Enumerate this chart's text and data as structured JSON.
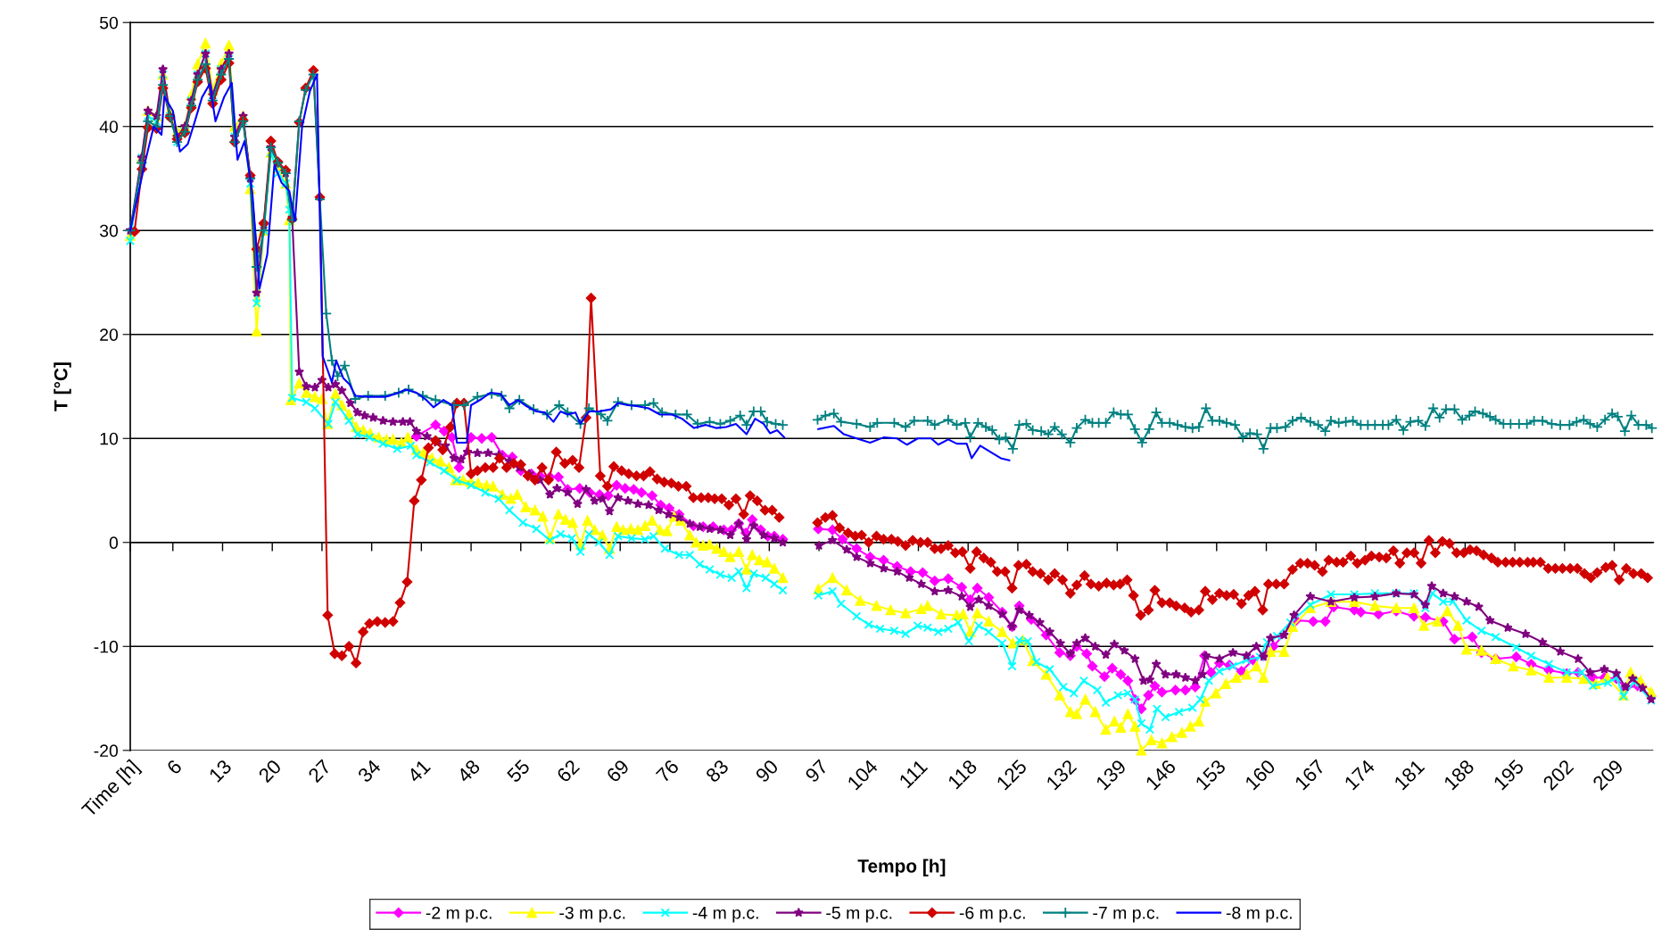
{
  "chart_data": {
    "type": "line",
    "xlabel": "Tempo [h]",
    "ylabel": "T [°C]",
    "xlim": [
      0,
      214.5
    ],
    "ylim": [
      -20,
      50
    ],
    "yticks": [
      -20,
      -10,
      0,
      10,
      20,
      30,
      40,
      50
    ],
    "xticks": [
      {
        "value": 0,
        "label": "Time [h]"
      },
      6,
      13,
      20,
      27,
      34,
      41,
      48,
      55,
      62,
      69,
      76,
      83,
      90,
      97,
      104,
      111,
      118,
      125,
      132,
      139,
      146,
      153,
      160,
      167,
      174,
      181,
      188,
      195,
      202,
      209
    ],
    "grid": "y",
    "legend": "bottom",
    "series": [
      {
        "name": "-2 m p.c.",
        "color": "#ff00ff",
        "marker": "diamond",
        "x": [
          40.3,
          43.0,
          44.2,
          45.3,
          46.3,
          48.0,
          49.5,
          50.9,
          52.4,
          53.8,
          55.0,
          56.5,
          57.7,
          59.1,
          60.3,
          61.6,
          63.3,
          64.7,
          66.1,
          67.3,
          68.5,
          69.7,
          70.9,
          72.0,
          73.5,
          74.7,
          75.9,
          77.3,
          79.3,
          80.7,
          82.1,
          83.6,
          84.7,
          85.7,
          86.7,
          87.6,
          88.8,
          89.8,
          90.7,
          91.9,
          94,
          96.9,
          98.9,
          100.3,
          102.3,
          104.2,
          106.1,
          108.0,
          109.9,
          111.6,
          113.3,
          115.2,
          117.1,
          118.3,
          119.3,
          120.9,
          122.8,
          124.2,
          125.2,
          126.9,
          129.0,
          130.9,
          132.4,
          133.3,
          134.7,
          135.5,
          137.2,
          138.3,
          139.5,
          140.5,
          141.5,
          142.4,
          143.4,
          144.3,
          145.3,
          147.2,
          148.6,
          150.0,
          151.3,
          152.2,
          153.4,
          154.8,
          156.5,
          158.1,
          159.6,
          161.0,
          163.4,
          164.2,
          166.6,
          168.3,
          169.5,
          172.4,
          173.3,
          175.8,
          178.3,
          180.8,
          182.4,
          184.9,
          186.5,
          189.0,
          190.3,
          192.3,
          195.2,
          197.3,
          199.8,
          202.3,
          203.9,
          206.0,
          207.6,
          209.3,
          210.6,
          212.3,
          214.2
        ],
        "values": [
          10.2,
          11.3,
          10.7,
          10.1,
          7.2,
          10.1,
          10.0,
          10.1,
          8.4,
          8.2,
          6.9,
          6.6,
          6.4,
          6.3,
          6.3,
          5.1,
          5.2,
          4.8,
          4.6,
          4.5,
          5.5,
          5.2,
          5.1,
          4.8,
          4.5,
          3.6,
          3.3,
          2.7,
          1.6,
          1.5,
          1.5,
          1.2,
          1.2,
          1.8,
          0.9,
          2.2,
          1.2,
          0.6,
          0.6,
          0.3,
          null,
          1.3,
          1.2,
          0.3,
          -0.6,
          -1.4,
          -1.7,
          -2.3,
          -2.8,
          -2.9,
          -3.7,
          -3.5,
          -4.3,
          -5.5,
          -4.4,
          -5.3,
          -6.7,
          -8.1,
          -6.1,
          -7.4,
          -8.9,
          -10.6,
          -10.9,
          -10.0,
          -10.7,
          -11.9,
          -12.9,
          -12.1,
          -12.7,
          -13.3,
          -15.1,
          -16.0,
          -14.7,
          -13.8,
          -14.4,
          -14.2,
          -14.2,
          -13.9,
          -10.9,
          -12.5,
          -11.6,
          -11.8,
          -12.4,
          -11.3,
          -10.9,
          -10.0,
          -8.1,
          -7.5,
          -7.6,
          -7.6,
          -6.2,
          -6.5,
          -6.7,
          -6.9,
          -6.6,
          -7.1,
          -7.2,
          -7.6,
          -9.3,
          -9.1,
          -10.6,
          -11.2,
          -11.0,
          -11.7,
          -12.3,
          -12.6,
          -12.5,
          -13.0,
          -13.0,
          -13.1,
          -14.0,
          -13.8,
          -14.8
        ]
      },
      {
        "name": "-3 m p.c.",
        "color": "#ffff00",
        "marker": "triangle",
        "x": [
          0,
          1.6,
          2.5,
          3.7,
          4.6,
          5.6,
          6.6,
          7.7,
          8.6,
          9.5,
          10.6,
          11.6,
          12.8,
          13.9,
          14.7,
          15.9,
          16.9,
          17.8,
          18.8,
          19.8,
          20.8,
          21.9,
          22.4,
          22.6,
          23.8,
          24.8,
          26.0,
          27.0,
          27.8,
          28.9,
          29.8,
          30.8,
          31.8,
          32.8,
          33.8,
          35.0,
          36.1,
          37.0,
          38.2,
          39.1,
          40.3,
          41.3,
          42.5,
          43.7,
          44.9,
          45.8,
          46.9,
          48.0,
          49.0,
          50.2,
          51.1,
          52.4,
          53.6,
          54.5,
          55.7,
          57.0,
          58.1,
          59.1,
          60.3,
          61.3,
          62.3,
          63.4,
          64.4,
          65.4,
          66.5,
          67.5,
          68.5,
          69.4,
          70.5,
          71.5,
          72.5,
          73.5,
          74.6,
          75.6,
          76.6,
          77.5,
          78.8,
          79.7,
          80.7,
          81.6,
          82.6,
          83.6,
          84.5,
          85.7,
          86.8,
          87.6,
          88.6,
          89.7,
          90.7,
          91.9,
          94,
          96.9,
          98.9,
          100.9,
          102.8,
          105.1,
          107.1,
          109.2,
          111.4,
          112.3,
          114.2,
          116.4,
          117.3,
          118.3,
          119.3,
          120.9,
          122.8,
          124.3,
          125.7,
          127.1,
          129.0,
          130.9,
          132.4,
          133.3,
          134.5,
          135.9,
          137.4,
          138.6,
          139.5,
          140.5,
          141.5,
          142.4,
          143.8,
          145.3,
          146.7,
          148.1,
          149.3,
          150.5,
          151.4,
          152.9,
          154.3,
          155.8,
          157.2,
          158.6,
          159.6,
          160.6,
          162.5,
          163.7,
          166.2,
          169.1,
          172.4,
          175.3,
          178.3,
          180.8,
          182.2,
          184.1,
          185.5,
          187.0,
          188.2,
          190.3,
          192.3,
          194.8,
          197.3,
          199.8,
          202.3,
          204.7,
          206.4,
          208.0,
          210.3,
          211.3,
          212.7,
          214.2
        ],
        "values": [
          29.5,
          37,
          41.5,
          41,
          45,
          41.5,
          39.5,
          40,
          43,
          46,
          48,
          43.5,
          46,
          47.8,
          40,
          41,
          34,
          20.3,
          30,
          37.5,
          36,
          34.5,
          31,
          13.7,
          15.3,
          14.4,
          14.0,
          13.8,
          11.4,
          14.3,
          13.2,
          12.3,
          11.1,
          10.8,
          10.5,
          10.1,
          9.9,
          9.9,
          9.6,
          10.1,
          8.9,
          8.6,
          8.1,
          7.8,
          7.2,
          6.0,
          6.0,
          5.8,
          5.7,
          5.5,
          5.4,
          4.6,
          4.2,
          4.6,
          3.4,
          3.1,
          2.5,
          0.4,
          2.7,
          2.2,
          1.9,
          -0.2,
          2.1,
          1.2,
          0.7,
          -0.6,
          1.5,
          1.2,
          1.3,
          1.2,
          1.6,
          2.1,
          1.2,
          1.1,
          2.5,
          2.1,
          0.7,
          0.0,
          -0.3,
          -0.2,
          -0.6,
          -0.9,
          -1.4,
          -0.9,
          -2.6,
          -1.2,
          -1.7,
          -1.9,
          -2.5,
          -3.4,
          null,
          -4.5,
          -3.4,
          -4.6,
          -5.6,
          -6.1,
          -6.5,
          -6.8,
          -6.4,
          -6.1,
          -6.9,
          -7.0,
          -6.9,
          -8.6,
          -6.8,
          -7.6,
          -8.6,
          -9.7,
          -9.4,
          -11.4,
          -12.7,
          -14.7,
          -16.3,
          -16.5,
          -15.1,
          -16.3,
          -18.0,
          -17.2,
          -17.8,
          -16.5,
          -17.7,
          -20.0,
          -19.0,
          -19.3,
          -18.7,
          -18.3,
          -17.7,
          -17.2,
          -15.3,
          -14.5,
          -13.6,
          -13.0,
          -12.7,
          -11.9,
          -13.0,
          -10.5,
          -10.5,
          -8.1,
          -6.3,
          -5.7,
          -5.7,
          -6.1,
          -6.3,
          -6.3,
          -8.0,
          -7.6,
          -6.6,
          -8.0,
          -10.3,
          -10.4,
          -11.2,
          -11.9,
          -12.3,
          -13.0,
          -13.0,
          -13.1,
          -13.6,
          -13.0,
          -14.7,
          -12.5,
          -13.3,
          -14.4
        ]
      },
      {
        "name": "-4 m p.c.",
        "color": "#00ffff",
        "marker": "cross",
        "x": [
          0,
          1.6,
          2.5,
          3.7,
          4.6,
          5.6,
          6.6,
          7.7,
          8.6,
          9.5,
          10.6,
          11.6,
          12.8,
          13.9,
          14.7,
          15.9,
          16.9,
          17.8,
          18.8,
          19.8,
          20.8,
          21.9,
          22.4,
          22.8,
          24.8,
          26.0,
          27.9,
          28.9,
          30.8,
          32.0,
          33.7,
          35.6,
          37.6,
          39.5,
          40.3,
          42.2,
          44.2,
          46.0,
          48.0,
          50.0,
          51.9,
          53.4,
          55.3,
          57.2,
          59.1,
          60.6,
          62.2,
          63.4,
          64.6,
          66.0,
          67.5,
          68.7,
          70.6,
          72.5,
          73.7,
          75.3,
          77.3,
          78.8,
          80.2,
          81.6,
          83.1,
          84.7,
          85.7,
          86.8,
          87.8,
          89.5,
          90.7,
          91.9,
          94,
          96.9,
          98.9,
          100.1,
          102.3,
          104.0,
          105.6,
          107.6,
          109.2,
          110.9,
          112.3,
          113.8,
          115.2,
          116.6,
          118.1,
          119.5,
          120.9,
          122.8,
          124.2,
          125.2,
          126.4,
          127.6,
          129.5,
          131.4,
          132.9,
          134.3,
          136.2,
          137.4,
          139.1,
          140.5,
          141.5,
          142.4,
          143.6,
          144.6,
          145.8,
          147.7,
          149.6,
          150.7,
          151.9,
          153.4,
          155.3,
          157.2,
          159.1,
          160.1,
          161.5,
          163.4,
          166.2,
          169.1,
          172.4,
          175.3,
          178.3,
          180.8,
          182.4,
          183.4,
          184.9,
          186.3,
          188.2,
          190.3,
          192.3,
          195.2,
          197.3,
          199.8,
          202.3,
          204.4,
          206.0,
          208.1,
          209.3,
          210.3,
          211.8,
          214.2
        ],
        "values": [
          29,
          37,
          41,
          40.5,
          45,
          41,
          38.5,
          39.5,
          42.5,
          45,
          47,
          43,
          45.5,
          46.5,
          39,
          40.5,
          34.5,
          23,
          30,
          37.5,
          35.5,
          34.5,
          32,
          13.9,
          13.5,
          12.9,
          11.4,
          13.5,
          11.7,
          10.4,
          10.1,
          9.5,
          9.0,
          9.3,
          8.4,
          7.7,
          6.9,
          6.0,
          5.5,
          4.8,
          4.2,
          3.1,
          1.9,
          1.3,
          0.2,
          0.8,
          0.4,
          -0.9,
          0.8,
          0.0,
          -1.2,
          0.6,
          0.4,
          0.3,
          0.6,
          -0.6,
          -1.2,
          -1.2,
          -2.1,
          -2.6,
          -3.1,
          -3.4,
          -2.8,
          -4.4,
          -3.0,
          -3.4,
          -4.0,
          -4.6,
          null,
          -5.1,
          -4.7,
          -5.9,
          -7.1,
          -7.9,
          -8.3,
          -8.5,
          -8.8,
          -8.0,
          -8.2,
          -8.6,
          -8.3,
          -7.7,
          -9.5,
          -8.0,
          -8.6,
          -9.7,
          -11.9,
          -9.4,
          -9.5,
          -11.5,
          -12.2,
          -13.9,
          -14.5,
          -13.3,
          -14.2,
          -15.4,
          -14.7,
          -14.5,
          -15.1,
          -17.4,
          -18.0,
          -16.0,
          -16.8,
          -16.3,
          -15.9,
          -15.1,
          -13.3,
          -12.4,
          -11.9,
          -11.3,
          -11.0,
          -9.6,
          -9.0,
          -7.7,
          -6.0,
          -5.0,
          -5.0,
          -4.9,
          -4.9,
          -4.9,
          -6.3,
          -4.9,
          -5.7,
          -5.7,
          -7.5,
          -8.5,
          -9.1,
          -10.1,
          -10.9,
          -11.7,
          -12.5,
          -12.5,
          -13.8,
          -13.5,
          -13.0,
          -14.8,
          -13.4,
          -15.2
        ]
      },
      {
        "name": "-5 m p.c.",
        "color": "#800080",
        "marker": "star",
        "x": [
          0,
          1.6,
          2.5,
          3.7,
          4.6,
          5.6,
          6.6,
          7.7,
          8.6,
          9.5,
          10.6,
          11.6,
          12.8,
          13.9,
          14.7,
          15.9,
          16.9,
          17.8,
          18.8,
          19.8,
          20.8,
          21.9,
          22.8,
          23.8,
          24.8,
          26.0,
          27.0,
          27.9,
          28.9,
          29.8,
          31.0,
          32.0,
          33.0,
          34.2,
          35.6,
          37.0,
          38.4,
          39.4,
          40.3,
          41.8,
          43.2,
          44.4,
          45.6,
          46.6,
          47.5,
          48.9,
          50.4,
          51.9,
          53.4,
          54.8,
          56.2,
          57.7,
          59.1,
          60.1,
          61.6,
          63.0,
          64.2,
          65.4,
          66.5,
          67.5,
          68.7,
          70.1,
          71.5,
          73.0,
          74.4,
          75.8,
          77.3,
          78.8,
          80.2,
          81.6,
          83.1,
          84.5,
          85.7,
          86.8,
          87.8,
          89.2,
          90.7,
          91.9,
          94,
          97.0,
          98.9,
          100.9,
          102.3,
          104.2,
          106.1,
          108.0,
          109.7,
          111.4,
          113.3,
          115.2,
          117.1,
          118.3,
          119.5,
          120.9,
          122.8,
          124.2,
          125.2,
          126.6,
          128.1,
          129.5,
          131.0,
          132.4,
          133.3,
          134.5,
          135.9,
          137.4,
          138.6,
          140.0,
          141.5,
          142.7,
          143.6,
          144.5,
          145.8,
          147.3,
          148.6,
          150.0,
          151.0,
          151.5,
          153.4,
          155.3,
          157.2,
          158.6,
          159.6,
          160.6,
          162.5,
          163.9,
          166.2,
          169.1,
          172.4,
          175.3,
          178.3,
          180.8,
          182.4,
          183.3,
          184.9,
          186.5,
          188.2,
          189.9,
          191.5,
          194.0,
          196.5,
          198.9,
          201.4,
          203.9,
          205.6,
          207.6,
          209.3,
          210.6,
          211.6,
          213.0,
          214.2
        ],
        "values": [
          30,
          37,
          41.5,
          41,
          45.5,
          41,
          39,
          40,
          42.5,
          45,
          47,
          43,
          45.5,
          47,
          39,
          41,
          35,
          24,
          30.5,
          38,
          36.5,
          35.5,
          31.2,
          16.4,
          15.0,
          14.9,
          15.6,
          14.9,
          15.2,
          14.6,
          13.4,
          12.5,
          12.2,
          12.0,
          11.7,
          11.6,
          11.6,
          11.6,
          10.7,
          10.2,
          9.6,
          9.3,
          8.1,
          8.0,
          8.7,
          8.6,
          8.6,
          8.4,
          7.8,
          7.2,
          6.6,
          6.0,
          4.6,
          5.2,
          4.8,
          3.7,
          5.1,
          4.0,
          4.2,
          3.0,
          4.3,
          4.0,
          3.7,
          3.6,
          3.1,
          2.7,
          2.4,
          1.8,
          1.5,
          1.3,
          1.2,
          0.7,
          1.8,
          0.3,
          1.6,
          0.7,
          0.4,
          0.0,
          null,
          -0.3,
          0.2,
          -0.7,
          -1.4,
          -2.0,
          -2.5,
          -2.8,
          -3.4,
          -4.0,
          -4.7,
          -4.6,
          -5.2,
          -6.2,
          -5.5,
          -6.1,
          -6.9,
          -8.1,
          -6.5,
          -7.0,
          -7.7,
          -8.6,
          -9.7,
          -10.7,
          -9.7,
          -9.2,
          -10.0,
          -10.8,
          -9.8,
          -10.4,
          -11.2,
          -13.3,
          -13.2,
          -11.7,
          -12.7,
          -12.7,
          -13.0,
          -13.3,
          -12.7,
          -10.9,
          -11.2,
          -10.6,
          -10.9,
          -10.0,
          -11.0,
          -9.2,
          -8.9,
          -7.0,
          -5.2,
          -5.7,
          -5.3,
          -5.2,
          -4.9,
          -5.0,
          -6.0,
          -4.2,
          -4.9,
          -5.2,
          -5.7,
          -6.2,
          -7.5,
          -8.2,
          -8.8,
          -9.6,
          -10.5,
          -11.2,
          -12.5,
          -12.2,
          -12.6,
          -13.9,
          -13.1,
          -14.0,
          -15.1
        ]
      },
      {
        "name": "-6 m p.c.",
        "color": "#d00000",
        "marker": "diamond",
        "x": [
          0.6,
          1.65,
          2.5,
          3.7,
          4.6,
          5.6,
          6.6,
          7.7,
          8.6,
          9.5,
          10.6,
          11.6,
          12.8,
          13.9,
          14.7,
          15.9,
          16.9,
          17.8,
          18.8,
          19.8,
          20.8,
          21.9,
          22.8,
          23.8,
          24.7,
          25.8,
          26.7,
          27.8,
          28.8,
          29.8,
          30.8,
          31.8,
          32.8,
          33.7,
          34.8,
          35.9,
          37.0,
          38.0,
          39.0,
          40.0,
          41.0,
          42.0,
          43.0,
          44.0,
          45.1,
          46.0,
          47.0,
          48.0,
          48.9,
          50.0,
          51.1,
          52.0,
          53.0,
          54.0,
          55.0,
          56.0,
          57.0,
          58.0,
          58.9,
          60.0,
          61.2,
          62.3,
          63.2,
          64.2,
          64.9,
          66.2,
          67.2,
          68.1,
          69.2,
          70.2,
          71.3,
          72.3,
          73.2,
          74.2,
          75.2,
          76.2,
          77.2,
          78.3,
          79.3,
          80.4,
          81.4,
          82.3,
          83.3,
          84.3,
          85.3,
          86.4,
          87.3,
          88.3,
          89.4,
          90.4,
          91.4,
          94,
          96.8,
          97.9,
          98.9,
          99.9,
          101.1,
          102.1,
          103.0,
          104.0,
          105.1,
          106.1,
          107.2,
          108.1,
          109.2,
          110.2,
          111.3,
          112.3,
          113.3,
          114.2,
          115.2,
          116.2,
          117.2,
          118.3,
          119.2,
          120.2,
          121.2,
          122.1,
          123.2,
          124.2,
          125.1,
          126.2,
          127.1,
          128.2,
          129.3,
          130.2,
          131.3,
          132.4,
          133.3,
          134.4,
          135.3,
          136.4,
          137.5,
          138.5,
          139.4,
          140.4,
          141.3,
          142.3,
          143.4,
          144.3,
          145.3,
          146.4,
          147.3,
          148.5,
          149.4,
          150.5,
          151.4,
          152.4,
          153.4,
          154.4,
          155.4,
          156.5,
          157.5,
          158.4,
          159.5,
          160.3,
          161.4,
          162.5,
          163.7,
          164.8,
          165.8,
          166.8,
          167.9,
          168.8,
          169.9,
          170.8,
          171.9,
          172.8,
          173.9,
          174.8,
          175.9,
          176.9,
          177.9,
          178.8,
          179.8,
          180.8,
          181.8,
          182.9,
          183.8,
          184.8,
          185.8,
          186.8,
          187.8,
          188.7,
          189.6,
          190.6,
          191.7,
          192.6,
          193.7,
          194.7,
          195.7,
          196.8,
          197.6,
          198.6,
          199.7,
          200.7,
          201.7,
          202.8,
          203.8,
          204.8,
          205.7,
          206.6,
          207.8,
          208.7,
          209.7,
          210.7,
          211.7,
          212.8,
          213.7
        ],
        "values": [
          29.9,
          35.9,
          39.9,
          39.8,
          43.7,
          40.9,
          38.8,
          39.4,
          41.8,
          44.3,
          45.6,
          42.2,
          44.5,
          46.1,
          38.5,
          40.6,
          35.3,
          28.2,
          30.7,
          38.6,
          36.6,
          35.8,
          31.1,
          40.4,
          43.7,
          45.4,
          33.2,
          -7.0,
          -10.7,
          -10.9,
          -10.0,
          -11.6,
          -8.6,
          -7.8,
          -7.6,
          -7.7,
          -7.6,
          -5.8,
          -3.8,
          4.0,
          6.0,
          9.1,
          9.8,
          8.9,
          11.1,
          13.4,
          13.4,
          6.6,
          6.9,
          7.2,
          7.2,
          8.1,
          7.2,
          7.6,
          7.5,
          6.4,
          6.0,
          7.2,
          6.0,
          8.7,
          7.6,
          7.9,
          7.2,
          12.0,
          23.5,
          6.4,
          5.4,
          7.3,
          6.9,
          6.6,
          6.4,
          6.4,
          6.8,
          6.1,
          5.8,
          5.7,
          5.4,
          5.4,
          4.3,
          4.3,
          4.3,
          4.2,
          4.2,
          3.6,
          4.2,
          2.7,
          4.5,
          4.0,
          3.1,
          3.1,
          2.4,
          null,
          1.9,
          2.4,
          2.6,
          1.4,
          0.9,
          0.6,
          0.7,
          0.0,
          0.6,
          0.3,
          0.3,
          0.1,
          -0.3,
          0.2,
          0.0,
          0.0,
          -0.6,
          -0.6,
          -0.3,
          -1.0,
          -0.9,
          -2.5,
          -0.9,
          -1.5,
          -1.9,
          -2.8,
          -2.8,
          -4.4,
          -2.2,
          -2.1,
          -2.8,
          -3.0,
          -3.6,
          -3.0,
          -3.6,
          -4.9,
          -4.1,
          -3.2,
          -4.0,
          -4.2,
          -3.9,
          -4.1,
          -4.0,
          -3.6,
          -5.1,
          -7.0,
          -6.5,
          -4.6,
          -5.8,
          -5.8,
          -6.1,
          -6.3,
          -6.7,
          -6.5,
          -4.7,
          -5.5,
          -4.9,
          -5.1,
          -5.0,
          -5.9,
          -5.1,
          -4.7,
          -6.5,
          -4.0,
          -4.0,
          -4.0,
          -2.6,
          -2.0,
          -2.0,
          -2.2,
          -2.8,
          -1.7,
          -1.9,
          -1.9,
          -1.3,
          -2.0,
          -1.7,
          -1.3,
          -1.4,
          -1.5,
          -0.8,
          -2.0,
          -1.0,
          -1.0,
          -2.0,
          0.2,
          -1.0,
          0.1,
          -0.1,
          -1.0,
          -1.0,
          -0.7,
          -0.8,
          -1.2,
          -1.5,
          -1.9,
          -1.9,
          -1.9,
          -1.9,
          -1.9,
          -1.9,
          -1.9,
          -2.5,
          -2.5,
          -2.5,
          -2.5,
          -2.5,
          -3.0,
          -3.4,
          -2.9,
          -2.4,
          -2.2,
          -3.6,
          -2.5,
          -3.0,
          -3.0,
          -3.4
        ]
      },
      {
        "name": "-7 m p.c.",
        "color": "#008080",
        "marker": "plus",
        "x": [
          0,
          1.6,
          2.5,
          3.7,
          4.6,
          5.6,
          6.6,
          7.7,
          8.6,
          9.5,
          10.6,
          11.6,
          12.8,
          13.9,
          14.7,
          15.9,
          16.9,
          17.8,
          18.8,
          19.8,
          20.8,
          21.9,
          22.8,
          23.8,
          24.7,
          25.8,
          26.7,
          27.6,
          28.4,
          29.2,
          30.2,
          31.7,
          33.5,
          35.9,
          37.8,
          39.2,
          41.2,
          43.0,
          45.6,
          47.0,
          48.9,
          50.9,
          52.3,
          53.4,
          54.8,
          56.8,
          58.7,
          60.4,
          61.6,
          63.4,
          64.6,
          66.3,
          67.2,
          68.7,
          70.6,
          72.5,
          73.7,
          74.9,
          76.8,
          78.4,
          79.9,
          81.6,
          83.1,
          84.5,
          85.9,
          86.8,
          87.8,
          88.8,
          89.7,
          90.9,
          91.9,
          94,
          96.8,
          97.9,
          99.1,
          100.1,
          102.3,
          104.2,
          105.2,
          107.6,
          109.2,
          110.4,
          112.3,
          113.3,
          115.2,
          116.4,
          117.6,
          118.3,
          119.4,
          120.5,
          121.4,
          122.4,
          123.3,
          124.3,
          125.2,
          126.2,
          127.1,
          128.3,
          129.3,
          130.2,
          131.2,
          132.4,
          133.3,
          134.5,
          135.5,
          136.4,
          137.4,
          138.5,
          139.5,
          140.5,
          141.5,
          142.5,
          143.5,
          144.5,
          145.3,
          146.4,
          147.5,
          148.6,
          149.6,
          150.5,
          151.5,
          152.4,
          153.4,
          154.4,
          155.6,
          156.7,
          157.7,
          158.7,
          159.6,
          160.6,
          161.5,
          162.7,
          163.7,
          164.9,
          166.2,
          167.3,
          168.3,
          169.1,
          170.2,
          171.2,
          172.2,
          173.3,
          174.3,
          175.3,
          176.4,
          177.2,
          178.3,
          179.3,
          180.3,
          181.4,
          182.4,
          183.5,
          184.4,
          185.3,
          186.5,
          187.6,
          188.6,
          189.4,
          190.5,
          191.5,
          192.3,
          193.4,
          194.4,
          195.6,
          196.7,
          197.7,
          198.9,
          200.2,
          201.4,
          202.7,
          203.7,
          204.7,
          205.6,
          206.6,
          207.7,
          208.7,
          209.5,
          210.5,
          211.4,
          212.4,
          213.5,
          214.3
        ],
        "values": [
          30,
          36.5,
          40.5,
          40,
          44,
          41,
          38.5,
          39.5,
          42,
          44.5,
          46,
          42.5,
          45,
          46.5,
          38.5,
          40.5,
          35,
          26.5,
          30,
          38,
          36.5,
          35.5,
          31,
          40.5,
          43.5,
          45,
          33,
          22,
          17.5,
          16,
          17,
          13.8,
          14.1,
          14.1,
          14.4,
          14.7,
          14.1,
          13.7,
          13.2,
          13.2,
          14.0,
          14.3,
          14.1,
          12.9,
          13.7,
          12.8,
          12.3,
          13.2,
          12.5,
          11.4,
          12.9,
          12.3,
          11.7,
          13.5,
          13.2,
          13.2,
          13.4,
          12.5,
          12.3,
          12.3,
          11.4,
          11.6,
          11.4,
          11.7,
          12.2,
          11.3,
          12.6,
          12.6,
          11.6,
          11.4,
          11.3,
          null,
          11.8,
          12.2,
          12.4,
          11.6,
          11.4,
          11.1,
          11.5,
          11.5,
          11.1,
          11.7,
          11.7,
          11.3,
          11.8,
          11.3,
          11.5,
          10.1,
          11.5,
          11.1,
          10.8,
          9.9,
          10.1,
          9.0,
          11.3,
          11.4,
          10.8,
          10.7,
          10.4,
          11.1,
          10.4,
          9.6,
          11.0,
          11.8,
          11.5,
          11.5,
          11.5,
          12.5,
          12.3,
          12.3,
          10.9,
          9.6,
          10.9,
          12.5,
          11.5,
          11.5,
          11.3,
          11.1,
          11.0,
          11.1,
          12.9,
          11.7,
          11.7,
          11.5,
          11.3,
          10.1,
          10.5,
          10.4,
          9.0,
          11.0,
          11.0,
          11.1,
          11.7,
          12.0,
          11.6,
          11.3,
          10.7,
          11.7,
          11.5,
          11.6,
          11.7,
          11.3,
          11.3,
          11.3,
          11.3,
          11.3,
          11.8,
          10.8,
          11.6,
          11.7,
          11.2,
          12.9,
          12.0,
          12.8,
          12.8,
          11.8,
          12.2,
          12.6,
          12.4,
          12.1,
          11.8,
          11.4,
          11.4,
          11.4,
          11.4,
          11.7,
          11.7,
          11.4,
          11.3,
          11.3,
          11.6,
          11.8,
          11.4,
          11.1,
          11.8,
          12.4,
          12.1,
          10.7,
          12.2,
          11.3,
          11.3,
          11.0
        ]
      },
      {
        "name": "-8 m p.c.",
        "color": "#0000ff",
        "x": [
          0,
          2.1,
          3.3,
          4.4,
          4.8,
          6.0,
          7.0,
          8.1,
          9.1,
          10.1,
          11.2,
          12.0,
          13.2,
          14.3,
          15.1,
          16.1,
          17.2,
          18.2,
          19.3,
          20.3,
          21.3,
          22.4,
          23.2,
          24.2,
          25.3,
          26.3,
          27.1,
          28.4,
          29.0,
          30.0,
          30.9,
          31.7,
          33.5,
          35.9,
          37.4,
          38.8,
          40.3,
          41.7,
          42.7,
          44.1,
          45.3,
          46.0,
          47.4,
          48.0,
          49.5,
          50.7,
          52.1,
          53.4,
          54.6,
          55.8,
          57.2,
          58.4,
          59.6,
          60.6,
          61.6,
          62.7,
          63.4,
          64.6,
          66.0,
          67.7,
          68.7,
          70.1,
          71.5,
          73.0,
          74.6,
          76.3,
          77.7,
          79.4,
          81.0,
          82.5,
          83.9,
          85.3,
          86.8,
          88.0,
          89.2,
          90.1,
          91.1,
          92.1,
          94,
          96.9,
          99.1,
          100.5,
          102.3,
          104.2,
          106.1,
          108.0,
          109.4,
          110.9,
          112.8,
          113.8,
          115.2,
          116.4,
          117.8,
          118.5,
          119.7,
          121.4,
          122.6,
          123.8
        ],
        "values": [
          30,
          36.6,
          40.0,
          39.2,
          42.9,
          41.5,
          37.6,
          38.3,
          40.5,
          42.8,
          44.1,
          40.5,
          42.8,
          44.2,
          36.8,
          38.6,
          33.6,
          24.4,
          27.7,
          36.3,
          34.6,
          33.8,
          30.9,
          40.0,
          43.4,
          45.0,
          17.9,
          15.4,
          17.5,
          15.8,
          15.2,
          14.1,
          14.0,
          14.0,
          14.3,
          14.7,
          14.4,
          13.7,
          13.0,
          13.7,
          13.2,
          9.6,
          9.6,
          13.2,
          13.8,
          14.4,
          14.3,
          13.2,
          13.7,
          13.1,
          12.6,
          12.5,
          11.6,
          12.6,
          12.3,
          12.5,
          11.4,
          12.6,
          12.6,
          12.8,
          13.4,
          13.2,
          13.1,
          12.9,
          12.3,
          12.3,
          11.9,
          11.0,
          11.3,
          11.0,
          11.1,
          11.4,
          10.4,
          11.9,
          11.4,
          10.5,
          10.8,
          10.1,
          null,
          10.9,
          11.2,
          10.4,
          10.0,
          9.6,
          10.1,
          10.0,
          9.4,
          10.0,
          10.0,
          9.4,
          9.9,
          9.5,
          9.5,
          8.1,
          9.3,
          8.6,
          8.1,
          7.9
        ]
      }
    ]
  }
}
